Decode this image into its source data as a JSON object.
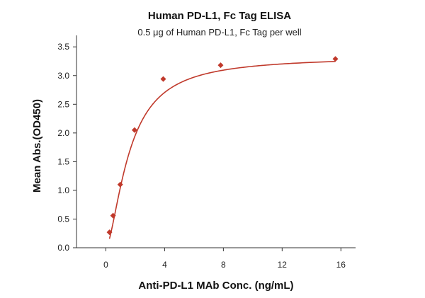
{
  "chart_data": {
    "type": "scatter",
    "title": "Human PD-L1, Fc Tag ELISA",
    "subtitle": "0.5 μg of Human PD-L1, Fc Tag per well",
    "xlabel": "Anti-PD-L1 MAb Conc. (ng/mL)",
    "ylabel": "Mean Abs.(OD450)",
    "xlim": [
      -2,
      17
    ],
    "ylim": [
      0,
      3.7
    ],
    "xticks": [
      0,
      4,
      8,
      12,
      16
    ],
    "xtick_labels": [
      "0",
      "4",
      "8",
      "12",
      "16"
    ],
    "yticks": [
      0,
      0.5,
      1.0,
      1.5,
      2.0,
      2.5,
      3.0,
      3.5
    ],
    "ytick_labels": [
      "0.0",
      "0.5",
      "1.0",
      "1.5",
      "2.0",
      "2.5",
      "3.0",
      "3.5"
    ],
    "grid": false,
    "series": [
      {
        "points": [
          {
            "x": 0.244,
            "y": 0.27
          },
          {
            "x": 0.488,
            "y": 0.56
          },
          {
            "x": 0.977,
            "y": 1.1
          },
          {
            "x": 1.953,
            "y": 2.05
          },
          {
            "x": 3.906,
            "y": 2.94
          },
          {
            "x": 7.8125,
            "y": 3.18
          },
          {
            "x": 15.625,
            "y": 3.29
          }
        ],
        "marker": "diamond",
        "color": "#c0392b"
      }
    ],
    "fit_curve": {
      "type": "4PL",
      "bottom": 0.0,
      "top": 3.33,
      "ec50": 1.6,
      "hill": 1.6,
      "color": "#c0392b"
    }
  }
}
